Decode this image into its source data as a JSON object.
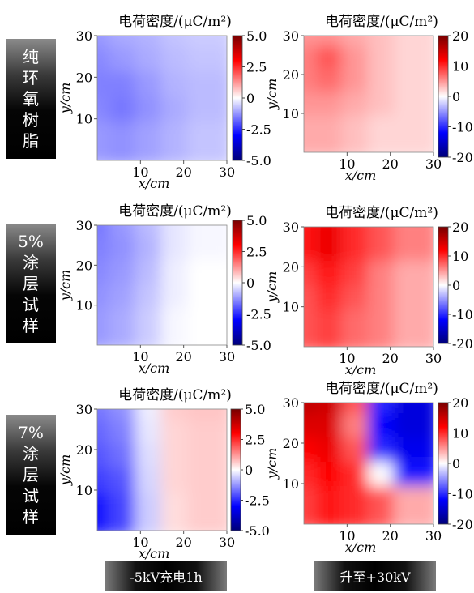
{
  "row_labels": [
    [
      "纯",
      "环",
      "氧",
      "树",
      "脂"
    ],
    [
      "5%",
      "涂",
      "层",
      "试",
      "样"
    ],
    [
      "7%",
      "涂",
      "层",
      "试",
      "样"
    ]
  ],
  "col_labels": [
    "-5kV充电1h",
    "升至+30kV"
  ],
  "chart_data": [
    {
      "type": "heatmap",
      "title": "电荷密度/(μC/m²)",
      "xlabel": "x/cm",
      "ylabel": "y/cm",
      "xlim": [
        0,
        30
      ],
      "ylim": [
        0,
        30
      ],
      "xticks": [
        10,
        20,
        30
      ],
      "yticks": [
        10,
        20,
        30
      ],
      "colorbar": {
        "range": [
          -5.0,
          5.0
        ],
        "ticks": [
          "5.0",
          "2.5",
          "0",
          "-2.5",
          "-5.0"
        ]
      },
      "x": [
        2,
        8,
        14,
        20,
        26
      ],
      "y": [
        28,
        22,
        16,
        10,
        4
      ],
      "values": [
        [
          -1.2,
          -1.0,
          -0.9,
          -0.7,
          -0.6
        ],
        [
          -1.4,
          -1.2,
          -1.0,
          -0.8,
          -0.7
        ],
        [
          -1.5,
          -1.5,
          -1.2,
          -0.9,
          -0.8
        ],
        [
          -1.4,
          -1.6,
          -1.3,
          -1.0,
          -0.8
        ],
        [
          -1.2,
          -1.3,
          -1.1,
          -0.9,
          -0.7
        ]
      ]
    },
    {
      "type": "heatmap",
      "title": "电荷密度/(μC/m²)",
      "xlabel": "x/cm",
      "ylabel": "y/cm",
      "xlim": [
        0,
        30
      ],
      "ylim": [
        0,
        30
      ],
      "xticks": [
        10,
        20,
        30
      ],
      "yticks": [
        10,
        20,
        30
      ],
      "colorbar": {
        "range": [
          -20,
          20
        ],
        "ticks": [
          "20",
          "10",
          "0",
          "-10",
          "-20"
        ]
      },
      "x": [
        2,
        8,
        14,
        20,
        26
      ],
      "y": [
        28,
        22,
        16,
        10,
        4
      ],
      "values": [
        [
          5,
          5,
          4,
          3,
          2
        ],
        [
          6,
          8,
          5,
          3,
          2
        ],
        [
          6,
          7,
          5,
          3,
          2
        ],
        [
          5,
          5,
          4,
          3,
          2
        ],
        [
          4,
          4,
          3,
          2,
          2
        ]
      ]
    },
    {
      "type": "heatmap",
      "title": "电荷密度/(μC/m²)",
      "xlabel": "x/cm",
      "ylabel": "y/cm",
      "xlim": [
        0,
        30
      ],
      "ylim": [
        0,
        30
      ],
      "xticks": [
        10,
        20,
        30
      ],
      "yticks": [
        10,
        20,
        30
      ],
      "colorbar": {
        "range": [
          -5.0,
          5.0
        ],
        "ticks": [
          "5.0",
          "2.5",
          "0",
          "-2.5",
          "-5.0"
        ]
      },
      "x": [
        2,
        8,
        14,
        20,
        26
      ],
      "y": [
        28,
        22,
        16,
        10,
        4
      ],
      "values": [
        [
          -1.6,
          -1.2,
          -0.8,
          -0.3,
          -0.1
        ],
        [
          -1.5,
          -1.3,
          -0.9,
          -0.3,
          -0.1
        ],
        [
          -1.4,
          -1.2,
          -0.8,
          -0.2,
          0.0
        ],
        [
          -1.3,
          -1.1,
          -0.7,
          -0.2,
          0.0
        ],
        [
          -1.2,
          -1.0,
          -0.6,
          -0.1,
          0.0
        ]
      ]
    },
    {
      "type": "heatmap",
      "title": "电荷密度/(μC/m²)",
      "xlabel": "x/cm",
      "ylabel": "y/cm",
      "xlim": [
        0,
        30
      ],
      "ylim": [
        0,
        30
      ],
      "xticks": [
        10,
        20,
        30
      ],
      "yticks": [
        10,
        20,
        30
      ],
      "colorbar": {
        "range": [
          -20,
          20
        ],
        "ticks": [
          "20",
          "10",
          "0",
          "-10",
          "-20"
        ]
      },
      "x": [
        2,
        8,
        14,
        20,
        26
      ],
      "y": [
        28,
        22,
        16,
        10,
        4
      ],
      "values": [
        [
          11,
          13,
          10,
          8,
          6
        ],
        [
          11,
          13,
          10,
          8,
          6
        ],
        [
          9,
          11,
          9,
          6,
          4
        ],
        [
          8,
          10,
          8,
          6,
          4
        ],
        [
          8,
          9,
          7,
          6,
          4
        ]
      ]
    },
    {
      "type": "heatmap",
      "title": "电荷密度/(μC/m²)",
      "xlabel": "x/cm",
      "ylabel": "y/cm",
      "xlim": [
        0,
        30
      ],
      "ylim": [
        0,
        30
      ],
      "xticks": [
        10,
        20,
        30
      ],
      "yticks": [
        10,
        20,
        30
      ],
      "colorbar": {
        "range": [
          -5.0,
          5.0
        ],
        "ticks": [
          "5.0",
          "2.5",
          "0",
          "-2.5",
          "-5.0"
        ]
      },
      "x": [
        2,
        8,
        14,
        20,
        26
      ],
      "y": [
        28,
        22,
        16,
        10,
        4
      ],
      "values": [
        [
          -1.6,
          -1.3,
          -0.2,
          0.6,
          0.7
        ],
        [
          -1.8,
          -1.5,
          -0.3,
          0.5,
          0.6
        ],
        [
          -2.0,
          -1.7,
          -0.4,
          0.5,
          0.6
        ],
        [
          -2.3,
          -2.0,
          -0.5,
          0.5,
          0.6
        ],
        [
          -2.8,
          -2.2,
          -0.6,
          0.4,
          0.6
        ]
      ]
    },
    {
      "type": "heatmap",
      "title": "电荷密度/(μC/m²)",
      "xlabel": "x/cm",
      "ylabel": "y/cm",
      "xlim": [
        0,
        30
      ],
      "ylim": [
        0,
        30
      ],
      "xticks": [
        10,
        20,
        30
      ],
      "yticks": [
        10,
        20,
        30
      ],
      "colorbar": {
        "range": [
          -20,
          20
        ],
        "ticks": [
          "20",
          "10",
          "0",
          "-10",
          "-20"
        ]
      },
      "x": [
        2,
        8,
        14,
        20,
        26
      ],
      "y": [
        28,
        22,
        16,
        10,
        4
      ],
      "values": [
        [
          16,
          15,
          8,
          -10,
          -14
        ],
        [
          14,
          14,
          6,
          -12,
          -14
        ],
        [
          12,
          13,
          8,
          -10,
          -13
        ],
        [
          10,
          12,
          10,
          0,
          -11
        ],
        [
          9,
          11,
          10,
          8,
          4
        ]
      ]
    }
  ]
}
